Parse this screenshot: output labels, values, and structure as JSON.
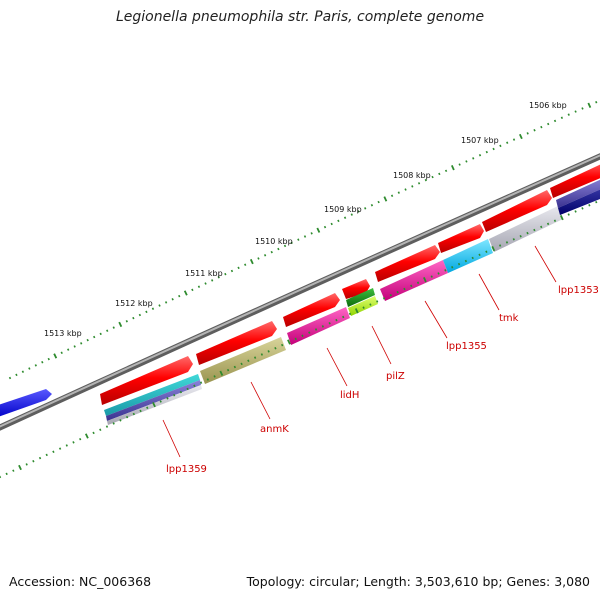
{
  "title": "Legionella pneumophila str. Paris, complete genome",
  "footer": {
    "accession": "Accession: NC_006368",
    "summary": "Topology: circular; Length: 3,503,610 bp; Genes: 3,080"
  },
  "ruler": {
    "ticks": [
      {
        "label": "1506 kbp",
        "kbp": 1506
      },
      {
        "label": "1507 kbp",
        "kbp": 1507
      },
      {
        "label": "1508 kbp",
        "kbp": 1508
      },
      {
        "label": "1509 kbp",
        "kbp": 1509
      },
      {
        "label": "1510 kbp",
        "kbp": 1510
      },
      {
        "label": "1511 kbp",
        "kbp": 1511
      },
      {
        "label": "1512 kbp",
        "kbp": 1512
      },
      {
        "label": "1513 kbp",
        "kbp": 1513
      }
    ]
  },
  "gene_labels": [
    {
      "name": "lpp1353"
    },
    {
      "name": "tmk"
    },
    {
      "name": "lpp1355"
    },
    {
      "name": "pilZ"
    },
    {
      "name": "lidH"
    },
    {
      "name": "anmK"
    },
    {
      "name": "lpp1359"
    }
  ],
  "colors": {
    "backbone": "#7a7a7a",
    "cds": "#ff0000",
    "label": "#cc0000",
    "tick": "#2e8b2e",
    "blue_feature": "#0000ff"
  }
}
